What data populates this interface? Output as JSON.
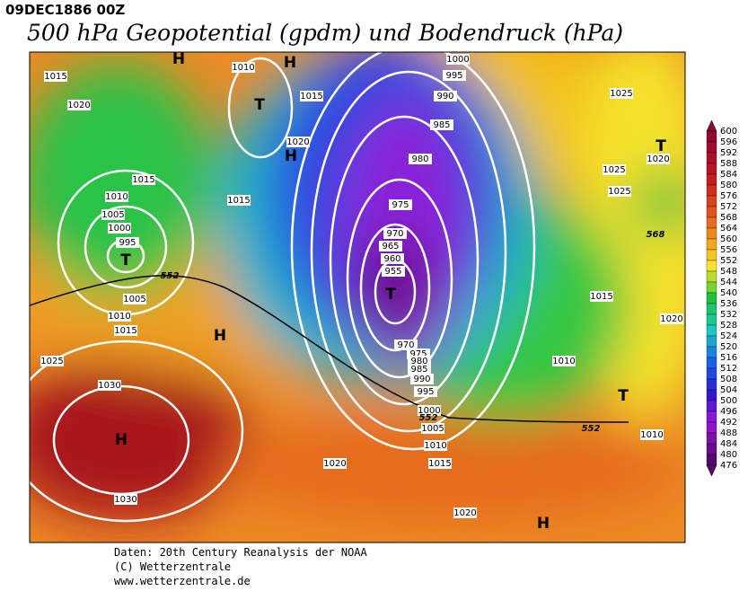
{
  "header": {
    "date": "09DEC1886 00Z",
    "title": "500 hPa Geopotential (gpdm) und Bodendruck (hPa)"
  },
  "map": {
    "isobar_labels": [
      1015,
      1020,
      1010,
      1015,
      1020,
      1015,
      1015,
      1010,
      1005,
      1000,
      995,
      1005,
      1010,
      1015,
      1025,
      1030,
      1030,
      1000,
      995,
      990,
      985,
      980,
      975,
      970,
      965,
      960,
      955,
      970,
      975,
      980,
      985,
      990,
      995,
      1000,
      1005,
      1010,
      1015,
      1020,
      1020,
      1025,
      1025,
      1025,
      1020,
      1015,
      1020,
      1010,
      1010
    ],
    "height_labels": [
      568,
      552,
      552,
      552
    ],
    "pressure_centers": [
      "H",
      "H",
      "T",
      "H",
      "T",
      "H",
      "T",
      "H",
      "H",
      "T",
      "T"
    ]
  },
  "colorbar": {
    "labels": [
      600,
      596,
      592,
      588,
      584,
      580,
      576,
      572,
      568,
      564,
      560,
      556,
      552,
      548,
      544,
      540,
      536,
      532,
      528,
      524,
      520,
      516,
      512,
      508,
      504,
      500,
      496,
      492,
      488,
      484,
      480,
      476
    ]
  },
  "footer": [
    "Daten: 20th Century Reanalysis der NOAA",
    "(C) Wetterzentrale",
    "www.wetterzentrale.de"
  ]
}
